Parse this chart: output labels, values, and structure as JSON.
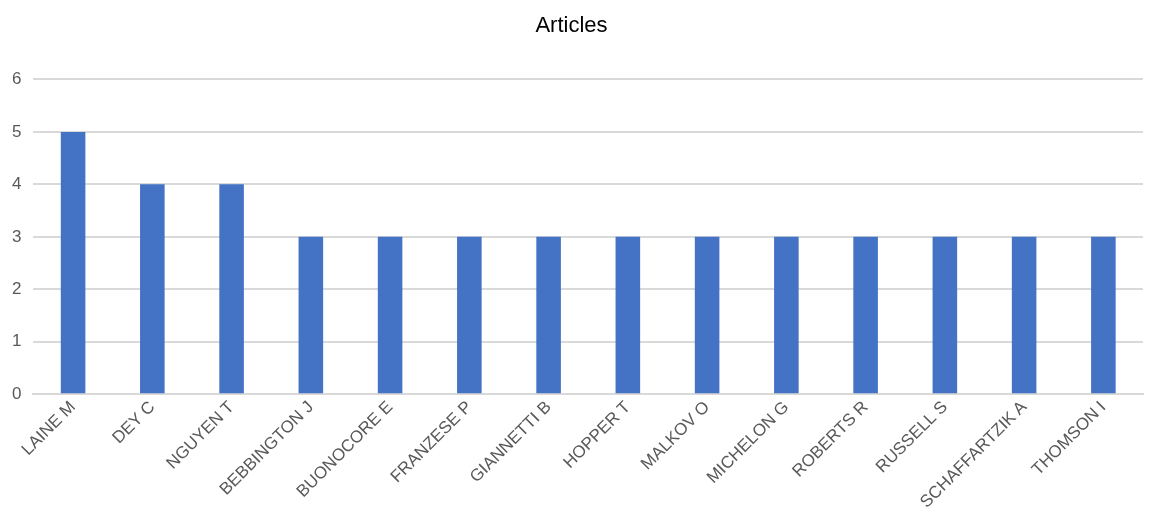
{
  "chart_data": {
    "type": "bar",
    "title": "Articles",
    "categories": [
      "LAINE M",
      "DEY C",
      "NGUYEN T",
      "BEBBINGTON J",
      "BUONOCORE E",
      "FRANZESE P",
      "GIANNETTI B",
      "HOPPER T",
      "MALKOV O",
      "MICHELON G",
      "ROBERTS R",
      "RUSSELL S",
      "SCHAFFARTZIK A",
      "THOMSON I"
    ],
    "values": [
      5,
      4,
      4,
      3,
      3,
      3,
      3,
      3,
      3,
      3,
      3,
      3,
      3,
      3
    ],
    "color": "#4472c4",
    "ylim": [
      0,
      6
    ],
    "yticks": [
      0,
      1,
      2,
      3,
      4,
      5,
      6
    ],
    "grid": "y",
    "legend": false
  }
}
